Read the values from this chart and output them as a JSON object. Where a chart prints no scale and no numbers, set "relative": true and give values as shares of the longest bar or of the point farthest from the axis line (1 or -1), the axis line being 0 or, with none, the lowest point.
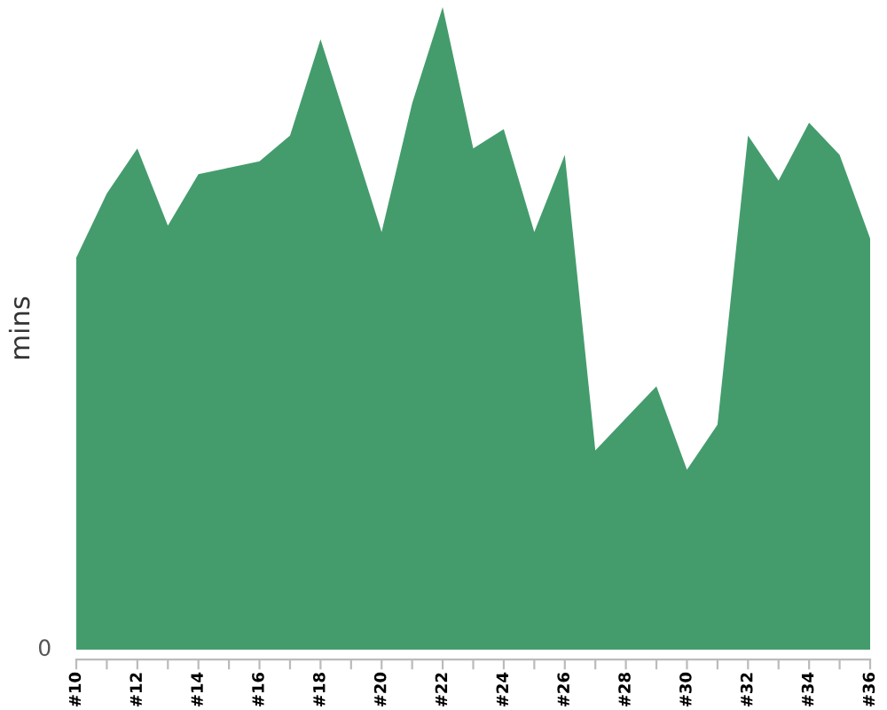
{
  "chart_data": {
    "type": "area",
    "ylabel": "mins",
    "relative": true,
    "color": "#449c6d",
    "annotations": [
      "0"
    ],
    "categories": [
      "#10",
      null,
      "#12",
      null,
      "#14",
      null,
      "#16",
      null,
      "#18",
      null,
      "#20",
      null,
      "#22",
      null,
      "#24",
      null,
      "#26",
      null,
      "#28",
      null,
      "#30",
      null,
      "#32",
      null,
      "#34",
      null,
      "#36"
    ],
    "values": [
      0.61,
      0.71,
      0.78,
      0.66,
      0.74,
      0.75,
      0.76,
      0.8,
      0.95,
      0.8,
      0.65,
      0.85,
      1,
      0.78,
      0.81,
      0.65,
      0.77,
      0.31,
      0.36,
      0.41,
      0.28,
      0.35,
      0.8,
      0.73,
      0.82,
      0.77,
      0.64
    ]
  }
}
